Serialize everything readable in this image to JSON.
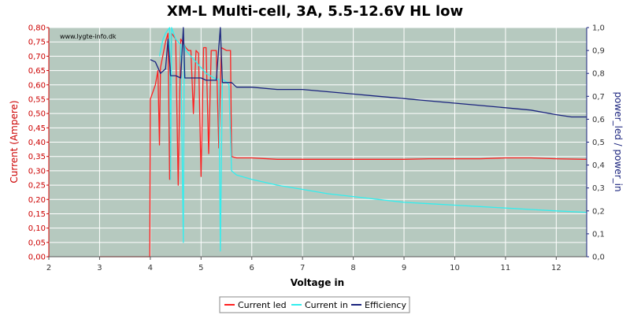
{
  "chart_data": {
    "type": "line",
    "title": "XM-L Multi-cell, 3A, 5.5-12.6V HL low",
    "watermark": "www.lygte-info.dk",
    "xlabel": "Voltage in",
    "ylabel_left": "Current (Ampere)",
    "ylabel_right": "power_led / power_in",
    "xlim": [
      2,
      12.6
    ],
    "ylim_left": [
      0,
      0.8
    ],
    "ylim_right": [
      0,
      1.0
    ],
    "x_ticks": [
      "2",
      "3",
      "4",
      "5",
      "6",
      "7",
      "8",
      "9",
      "10",
      "11",
      "12"
    ],
    "y_left_ticks": [
      "0,00",
      "0,05",
      "0,10",
      "0,15",
      "0,20",
      "0,25",
      "0,30",
      "0,35",
      "0,40",
      "0,45",
      "0,50",
      "0,55",
      "0,60",
      "0,65",
      "0,70",
      "0,75",
      "0,80"
    ],
    "y_right_ticks": [
      "0,0",
      "0,1",
      "0,2",
      "0,3",
      "0,4",
      "0,5",
      "0,6",
      "0,7",
      "0,8",
      "0,9",
      "1,0"
    ],
    "grid": true,
    "legend_position": "bottom-center",
    "colors": {
      "plot_bg": "#b6c9bf",
      "grid": "#ffffff",
      "current_led": "#ff2020",
      "current_in": "#33eeee",
      "efficiency": "#1a237e",
      "left_axis": "#cc0000",
      "right_axis": "#1a237e"
    },
    "series": [
      {
        "name": "Current led",
        "axis": "left",
        "points": [
          [
            3.0,
            0.0
          ],
          [
            3.5,
            0.0
          ],
          [
            3.99,
            0.0
          ],
          [
            4.0,
            0.55
          ],
          [
            4.1,
            0.6
          ],
          [
            4.15,
            0.65
          ],
          [
            4.18,
            0.39
          ],
          [
            4.2,
            0.66
          ],
          [
            4.3,
            0.75
          ],
          [
            4.35,
            0.78
          ],
          [
            4.38,
            0.27
          ],
          [
            4.42,
            0.78
          ],
          [
            4.5,
            0.76
          ],
          [
            4.55,
            0.25
          ],
          [
            4.6,
            0.76
          ],
          [
            4.7,
            0.73
          ],
          [
            4.75,
            0.72
          ],
          [
            4.8,
            0.72
          ],
          [
            4.85,
            0.5
          ],
          [
            4.9,
            0.72
          ],
          [
            4.95,
            0.71
          ],
          [
            5.0,
            0.28
          ],
          [
            5.05,
            0.73
          ],
          [
            5.1,
            0.73
          ],
          [
            5.15,
            0.36
          ],
          [
            5.2,
            0.72
          ],
          [
            5.3,
            0.72
          ],
          [
            5.35,
            0.38
          ],
          [
            5.4,
            0.73
          ],
          [
            5.5,
            0.72
          ],
          [
            5.58,
            0.72
          ],
          [
            5.6,
            0.35
          ],
          [
            5.7,
            0.345
          ],
          [
            6.0,
            0.345
          ],
          [
            6.5,
            0.34
          ],
          [
            7.0,
            0.34
          ],
          [
            7.5,
            0.34
          ],
          [
            8.0,
            0.34
          ],
          [
            8.5,
            0.34
          ],
          [
            9.0,
            0.34
          ],
          [
            9.5,
            0.342
          ],
          [
            10.0,
            0.342
          ],
          [
            10.5,
            0.342
          ],
          [
            11.0,
            0.345
          ],
          [
            11.5,
            0.345
          ],
          [
            12.0,
            0.342
          ],
          [
            12.6,
            0.34
          ]
        ]
      },
      {
        "name": "Current in",
        "axis": "left",
        "points": [
          [
            4.18,
            0.7
          ],
          [
            4.25,
            0.76
          ],
          [
            4.3,
            0.78
          ],
          [
            4.38,
            0.8
          ],
          [
            4.4,
            0.27
          ],
          [
            4.42,
            0.8
          ],
          [
            4.5,
            0.76
          ],
          [
            4.6,
            0.74
          ],
          [
            4.65,
            0.05
          ],
          [
            4.67,
            0.74
          ],
          [
            4.7,
            0.72
          ],
          [
            4.8,
            0.7
          ],
          [
            4.9,
            0.68
          ],
          [
            5.0,
            0.66
          ],
          [
            5.1,
            0.64
          ],
          [
            5.2,
            0.63
          ],
          [
            5.3,
            0.62
          ],
          [
            5.35,
            0.62
          ],
          [
            5.38,
            0.02
          ],
          [
            5.42,
            0.62
          ],
          [
            5.5,
            0.61
          ],
          [
            5.55,
            0.6
          ],
          [
            5.6,
            0.3
          ],
          [
            5.7,
            0.285
          ],
          [
            6.0,
            0.27
          ],
          [
            6.5,
            0.25
          ],
          [
            7.0,
            0.235
          ],
          [
            7.5,
            0.22
          ],
          [
            8.0,
            0.21
          ],
          [
            8.5,
            0.2
          ],
          [
            9.0,
            0.19
          ],
          [
            9.5,
            0.185
          ],
          [
            10.0,
            0.18
          ],
          [
            10.5,
            0.175
          ],
          [
            11.0,
            0.17
          ],
          [
            11.5,
            0.165
          ],
          [
            12.0,
            0.16
          ],
          [
            12.6,
            0.155
          ]
        ]
      },
      {
        "name": "Efficiency",
        "axis": "right",
        "points": [
          [
            4.0,
            0.86
          ],
          [
            4.1,
            0.85
          ],
          [
            4.2,
            0.8
          ],
          [
            4.3,
            0.82
          ],
          [
            4.35,
            0.95
          ],
          [
            4.4,
            0.79
          ],
          [
            4.5,
            0.79
          ],
          [
            4.6,
            0.78
          ],
          [
            4.65,
            1.0
          ],
          [
            4.68,
            0.78
          ],
          [
            4.8,
            0.78
          ],
          [
            4.9,
            0.78
          ],
          [
            5.0,
            0.78
          ],
          [
            5.1,
            0.77
          ],
          [
            5.2,
            0.77
          ],
          [
            5.3,
            0.77
          ],
          [
            5.38,
            1.0
          ],
          [
            5.42,
            0.76
          ],
          [
            5.5,
            0.76
          ],
          [
            5.6,
            0.76
          ],
          [
            5.7,
            0.74
          ],
          [
            6.0,
            0.74
          ],
          [
            6.5,
            0.73
          ],
          [
            7.0,
            0.73
          ],
          [
            7.5,
            0.72
          ],
          [
            8.0,
            0.71
          ],
          [
            8.5,
            0.7
          ],
          [
            9.0,
            0.69
          ],
          [
            9.5,
            0.68
          ],
          [
            10.0,
            0.67
          ],
          [
            10.5,
            0.66
          ],
          [
            11.0,
            0.65
          ],
          [
            11.5,
            0.64
          ],
          [
            12.0,
            0.62
          ],
          [
            12.3,
            0.61
          ],
          [
            12.6,
            0.61
          ]
        ]
      }
    ]
  }
}
